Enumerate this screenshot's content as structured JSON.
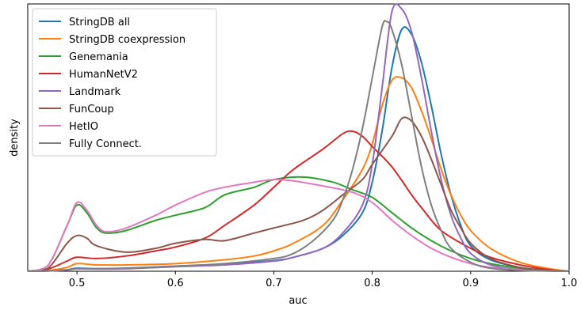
{
  "chart_data": {
    "type": "line",
    "xlabel": "auc",
    "ylabel": "density",
    "xlim": [
      0.45,
      1.0
    ],
    "ylim": [
      0,
      10.5
    ],
    "xticks": [
      "0.5",
      "0.6",
      "0.7",
      "0.8",
      "0.9",
      "1.0"
    ],
    "yticks_shown": false,
    "grid": false,
    "legend_position": "top-left",
    "series": [
      {
        "name": "StringDB all",
        "color": "#1f77b4",
        "points": [
          [
            0.45,
            0
          ],
          [
            0.47,
            0.01
          ],
          [
            0.49,
            0.06
          ],
          [
            0.5,
            0.12
          ],
          [
            0.52,
            0.1
          ],
          [
            0.55,
            0.12
          ],
          [
            0.6,
            0.2
          ],
          [
            0.65,
            0.28
          ],
          [
            0.7,
            0.42
          ],
          [
            0.72,
            0.55
          ],
          [
            0.75,
            0.9
          ],
          [
            0.77,
            1.4
          ],
          [
            0.79,
            2.3
          ],
          [
            0.8,
            3.5
          ],
          [
            0.81,
            5.5
          ],
          [
            0.82,
            8.0
          ],
          [
            0.83,
            9.5
          ],
          [
            0.84,
            9.3
          ],
          [
            0.85,
            8.2
          ],
          [
            0.86,
            6.5
          ],
          [
            0.87,
            4.6
          ],
          [
            0.88,
            3.0
          ],
          [
            0.89,
            1.8
          ],
          [
            0.9,
            1.0
          ],
          [
            0.92,
            0.45
          ],
          [
            0.95,
            0.15
          ],
          [
            0.98,
            0.03
          ],
          [
            1.0,
            0
          ]
        ]
      },
      {
        "name": "StringDB coexpression",
        "color": "#ff7f0e",
        "points": [
          [
            0.45,
            0
          ],
          [
            0.47,
            0.03
          ],
          [
            0.49,
            0.15
          ],
          [
            0.5,
            0.3
          ],
          [
            0.52,
            0.25
          ],
          [
            0.55,
            0.25
          ],
          [
            0.6,
            0.3
          ],
          [
            0.65,
            0.45
          ],
          [
            0.68,
            0.6
          ],
          [
            0.7,
            0.8
          ],
          [
            0.72,
            1.1
          ],
          [
            0.75,
            1.8
          ],
          [
            0.77,
            2.8
          ],
          [
            0.79,
            4.0
          ],
          [
            0.8,
            5.0
          ],
          [
            0.81,
            6.5
          ],
          [
            0.82,
            7.5
          ],
          [
            0.83,
            7.6
          ],
          [
            0.84,
            7.2
          ],
          [
            0.85,
            6.3
          ],
          [
            0.86,
            5.2
          ],
          [
            0.87,
            4.0
          ],
          [
            0.88,
            3.0
          ],
          [
            0.89,
            2.2
          ],
          [
            0.9,
            1.6
          ],
          [
            0.92,
            0.9
          ],
          [
            0.95,
            0.35
          ],
          [
            0.98,
            0.1
          ],
          [
            1.0,
            0
          ]
        ]
      },
      {
        "name": "Genemania",
        "color": "#2ca02c",
        "points": [
          [
            0.45,
            0
          ],
          [
            0.47,
            0.2
          ],
          [
            0.49,
            1.8
          ],
          [
            0.5,
            2.6
          ],
          [
            0.51,
            2.3
          ],
          [
            0.52,
            1.7
          ],
          [
            0.53,
            1.5
          ],
          [
            0.55,
            1.6
          ],
          [
            0.58,
            2.0
          ],
          [
            0.6,
            2.2
          ],
          [
            0.63,
            2.5
          ],
          [
            0.65,
            3.0
          ],
          [
            0.68,
            3.3
          ],
          [
            0.7,
            3.6
          ],
          [
            0.73,
            3.7
          ],
          [
            0.76,
            3.5
          ],
          [
            0.78,
            3.2
          ],
          [
            0.8,
            2.9
          ],
          [
            0.82,
            2.3
          ],
          [
            0.84,
            1.7
          ],
          [
            0.86,
            1.2
          ],
          [
            0.88,
            0.8
          ],
          [
            0.9,
            0.5
          ],
          [
            0.92,
            0.3
          ],
          [
            0.95,
            0.12
          ],
          [
            0.98,
            0.02
          ],
          [
            1.0,
            0
          ]
        ]
      },
      {
        "name": "HumanNetV2",
        "color": "#d62728",
        "points": [
          [
            0.45,
            0
          ],
          [
            0.47,
            0.08
          ],
          [
            0.49,
            0.4
          ],
          [
            0.5,
            0.55
          ],
          [
            0.52,
            0.5
          ],
          [
            0.55,
            0.6
          ],
          [
            0.58,
            0.8
          ],
          [
            0.6,
            0.95
          ],
          [
            0.63,
            1.3
          ],
          [
            0.65,
            1.8
          ],
          [
            0.68,
            2.6
          ],
          [
            0.7,
            3.3
          ],
          [
            0.72,
            4.0
          ],
          [
            0.75,
            4.8
          ],
          [
            0.77,
            5.4
          ],
          [
            0.78,
            5.5
          ],
          [
            0.79,
            5.3
          ],
          [
            0.8,
            4.9
          ],
          [
            0.82,
            4.1
          ],
          [
            0.84,
            3.0
          ],
          [
            0.85,
            2.5
          ],
          [
            0.87,
            1.6
          ],
          [
            0.9,
            0.9
          ],
          [
            0.92,
            0.55
          ],
          [
            0.95,
            0.25
          ],
          [
            0.98,
            0.06
          ],
          [
            1.0,
            0
          ]
        ]
      },
      {
        "name": "Landmark",
        "color": "#9467bd",
        "points": [
          [
            0.45,
            0
          ],
          [
            0.47,
            0.01
          ],
          [
            0.49,
            0.05
          ],
          [
            0.5,
            0.1
          ],
          [
            0.52,
            0.09
          ],
          [
            0.55,
            0.1
          ],
          [
            0.6,
            0.18
          ],
          [
            0.65,
            0.25
          ],
          [
            0.7,
            0.4
          ],
          [
            0.72,
            0.55
          ],
          [
            0.75,
            0.9
          ],
          [
            0.77,
            1.5
          ],
          [
            0.79,
            2.6
          ],
          [
            0.8,
            4.2
          ],
          [
            0.81,
            7.2
          ],
          [
            0.82,
            10.2
          ],
          [
            0.83,
            10.3
          ],
          [
            0.84,
            9.4
          ],
          [
            0.85,
            7.6
          ],
          [
            0.86,
            5.5
          ],
          [
            0.87,
            3.6
          ],
          [
            0.88,
            2.2
          ],
          [
            0.89,
            1.3
          ],
          [
            0.9,
            0.7
          ],
          [
            0.92,
            0.25
          ],
          [
            0.95,
            0.06
          ],
          [
            0.98,
            0.01
          ],
          [
            1.0,
            0
          ]
        ]
      },
      {
        "name": "FunCoup",
        "color": "#8c564b",
        "points": [
          [
            0.45,
            0
          ],
          [
            0.47,
            0.1
          ],
          [
            0.49,
            1.1
          ],
          [
            0.5,
            1.4
          ],
          [
            0.51,
            1.3
          ],
          [
            0.52,
            1.0
          ],
          [
            0.55,
            0.75
          ],
          [
            0.58,
            0.9
          ],
          [
            0.6,
            1.1
          ],
          [
            0.63,
            1.25
          ],
          [
            0.65,
            1.2
          ],
          [
            0.68,
            1.5
          ],
          [
            0.7,
            1.7
          ],
          [
            0.73,
            2.0
          ],
          [
            0.75,
            2.4
          ],
          [
            0.77,
            3.0
          ],
          [
            0.79,
            3.6
          ],
          [
            0.8,
            4.2
          ],
          [
            0.82,
            5.3
          ],
          [
            0.83,
            6.0
          ],
          [
            0.84,
            5.9
          ],
          [
            0.85,
            5.3
          ],
          [
            0.86,
            4.4
          ],
          [
            0.87,
            3.4
          ],
          [
            0.88,
            2.4
          ],
          [
            0.89,
            1.7
          ],
          [
            0.9,
            1.1
          ],
          [
            0.92,
            0.5
          ],
          [
            0.95,
            0.15
          ],
          [
            0.98,
            0.03
          ],
          [
            1.0,
            0
          ]
        ]
      },
      {
        "name": "HetIO",
        "color": "#e377c2",
        "points": [
          [
            0.45,
            0
          ],
          [
            0.47,
            0.2
          ],
          [
            0.49,
            1.8
          ],
          [
            0.5,
            2.7
          ],
          [
            0.51,
            2.4
          ],
          [
            0.52,
            1.8
          ],
          [
            0.53,
            1.55
          ],
          [
            0.55,
            1.7
          ],
          [
            0.58,
            2.2
          ],
          [
            0.6,
            2.6
          ],
          [
            0.63,
            3.1
          ],
          [
            0.65,
            3.3
          ],
          [
            0.68,
            3.5
          ],
          [
            0.7,
            3.6
          ],
          [
            0.72,
            3.55
          ],
          [
            0.75,
            3.35
          ],
          [
            0.78,
            3.1
          ],
          [
            0.8,
            2.7
          ],
          [
            0.82,
            2.0
          ],
          [
            0.84,
            1.4
          ],
          [
            0.86,
            0.9
          ],
          [
            0.88,
            0.55
          ],
          [
            0.9,
            0.3
          ],
          [
            0.92,
            0.15
          ],
          [
            0.95,
            0.05
          ],
          [
            0.98,
            0.01
          ],
          [
            1.0,
            0
          ]
        ]
      },
      {
        "name": "Fully Connect.",
        "color": "#7f7f7f",
        "points": [
          [
            0.45,
            0
          ],
          [
            0.47,
            0.01
          ],
          [
            0.49,
            0.05
          ],
          [
            0.5,
            0.1
          ],
          [
            0.52,
            0.1
          ],
          [
            0.55,
            0.12
          ],
          [
            0.6,
            0.2
          ],
          [
            0.65,
            0.3
          ],
          [
            0.7,
            0.5
          ],
          [
            0.72,
            0.7
          ],
          [
            0.74,
            1.2
          ],
          [
            0.76,
            2.0
          ],
          [
            0.77,
            2.8
          ],
          [
            0.78,
            4.0
          ],
          [
            0.79,
            5.6
          ],
          [
            0.8,
            7.6
          ],
          [
            0.81,
            9.6
          ],
          [
            0.815,
            9.8
          ],
          [
            0.82,
            9.5
          ],
          [
            0.83,
            8.1
          ],
          [
            0.84,
            6.1
          ],
          [
            0.85,
            4.1
          ],
          [
            0.86,
            2.6
          ],
          [
            0.87,
            1.6
          ],
          [
            0.88,
            0.9
          ],
          [
            0.9,
            0.35
          ],
          [
            0.92,
            0.12
          ],
          [
            0.95,
            0.03
          ],
          [
            1.0,
            0
          ]
        ]
      }
    ]
  }
}
